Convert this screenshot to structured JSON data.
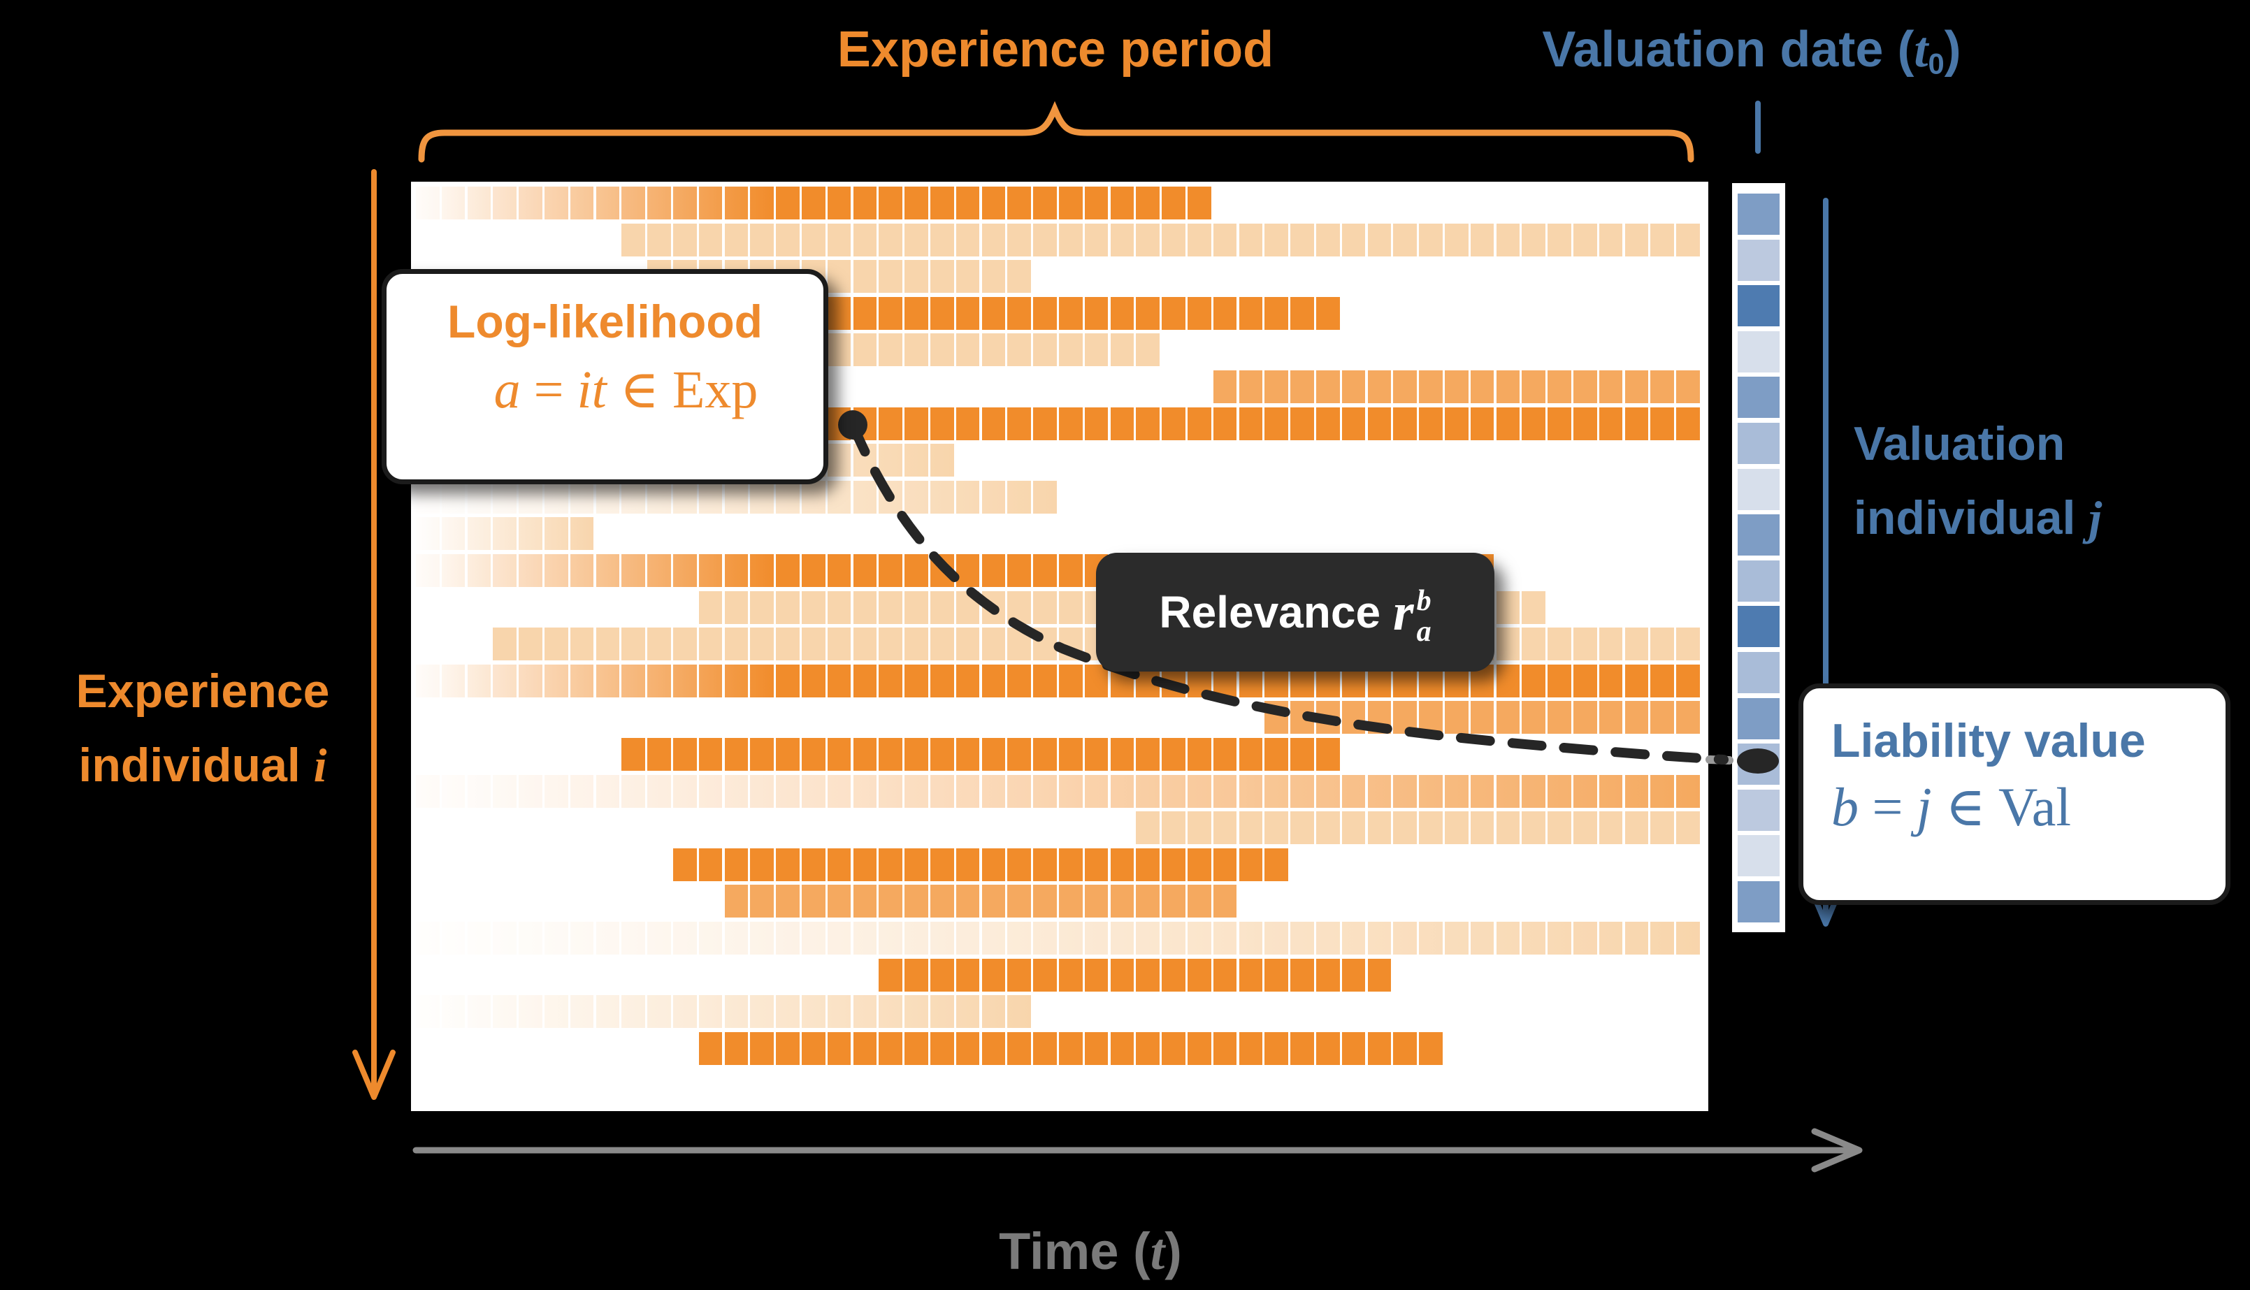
{
  "header": {
    "experience_period": "Experience period",
    "valuation_date_prefix": "Valuation date (",
    "valuation_date_var": "t",
    "valuation_date_sub": "0",
    "valuation_date_suffix": ")"
  },
  "left_axis": {
    "line1": "Experience",
    "line2_prefix": "individual ",
    "line2_var": "i"
  },
  "right_axis": {
    "line1": "Valuation",
    "line2_prefix": "individual ",
    "line2_var": "j"
  },
  "time_axis": {
    "prefix": "Time (",
    "var": "t",
    "suffix": ")"
  },
  "callouts": {
    "loglik": {
      "title": "Log-likelihood",
      "f_lhs": "a",
      "f_eq": " = ",
      "f_var": "it",
      "f_in": " ∈ ",
      "f_set": "Exp"
    },
    "relevance": {
      "title": "Relevance",
      "var": "r",
      "sup": "b",
      "sub": "a"
    },
    "liability": {
      "title": "Liability value",
      "f_lhs": "b",
      "f_eq": " = ",
      "f_var": "j",
      "f_in": " ∈ ",
      "f_set": "Val"
    }
  },
  "colors": {
    "orange_label": "#EE8A2D",
    "blue_label": "#4A77A8",
    "gray_label": "#7A7A7A",
    "orange_solid": "#F18C2B",
    "orange_medium": "#F5A95F",
    "orange_light": "#F8D5AC",
    "curve": "#262626",
    "blue_cells": {
      "dark": "#4E7BB0",
      "medium": "#7E9DC5",
      "mlight": "#A9BCD8",
      "light": "#BCC9DF",
      "xlight": "#D7DFEB"
    }
  },
  "grid": {
    "cols": 50,
    "rows": [
      {
        "segs": [
          [
            0,
            31,
            "fadeSolid"
          ]
        ]
      },
      {
        "segs": [
          [
            8,
            50,
            "light"
          ]
        ]
      },
      {
        "segs": [
          [
            9,
            24,
            "light"
          ]
        ]
      },
      {
        "segs": [
          [
            10,
            36,
            "solid"
          ]
        ]
      },
      {
        "segs": [
          [
            8,
            29,
            "light"
          ]
        ]
      },
      {
        "segs": [
          [
            31,
            50,
            "medium"
          ]
        ]
      },
      {
        "segs": [
          [
            0,
            50,
            "fadeSolid"
          ]
        ]
      },
      {
        "segs": [
          [
            0,
            21,
            "fade"
          ]
        ]
      },
      {
        "segs": [
          [
            0,
            25,
            "fade"
          ]
        ]
      },
      {
        "segs": [
          [
            0,
            7,
            "fade"
          ]
        ]
      },
      {
        "segs": [
          [
            0,
            42,
            "fadeSolid"
          ]
        ]
      },
      {
        "segs": [
          [
            11,
            44,
            "light"
          ]
        ]
      },
      {
        "segs": [
          [
            3,
            50,
            "light"
          ]
        ]
      },
      {
        "segs": [
          [
            0,
            50,
            "fadeSolid"
          ]
        ]
      },
      {
        "segs": [
          [
            33,
            50,
            "medium"
          ]
        ]
      },
      {
        "segs": [
          [
            8,
            36,
            "solid"
          ]
        ]
      },
      {
        "segs": [
          [
            0,
            50,
            "fadeMedium"
          ]
        ]
      },
      {
        "segs": [
          [
            28,
            50,
            "light"
          ]
        ]
      },
      {
        "segs": [
          [
            10,
            34,
            "solid"
          ]
        ]
      },
      {
        "segs": [
          [
            12,
            32,
            "medium"
          ]
        ]
      },
      {
        "segs": [
          [
            0,
            50,
            "fade"
          ]
        ]
      },
      {
        "segs": [
          [
            18,
            38,
            "solid"
          ]
        ]
      },
      {
        "segs": [
          [
            0,
            24,
            "fade"
          ]
        ]
      },
      {
        "segs": [
          [
            11,
            40,
            "solid"
          ]
        ]
      },
      {
        "segs": []
      }
    ]
  },
  "valuation_strip": {
    "cells": [
      "medium",
      "light",
      "dark",
      "xlight",
      "medium",
      "mlight",
      "xlight",
      "medium",
      "mlight",
      "dark",
      "mlight",
      "medium",
      "mlight",
      "light",
      "xlight",
      "medium"
    ]
  }
}
